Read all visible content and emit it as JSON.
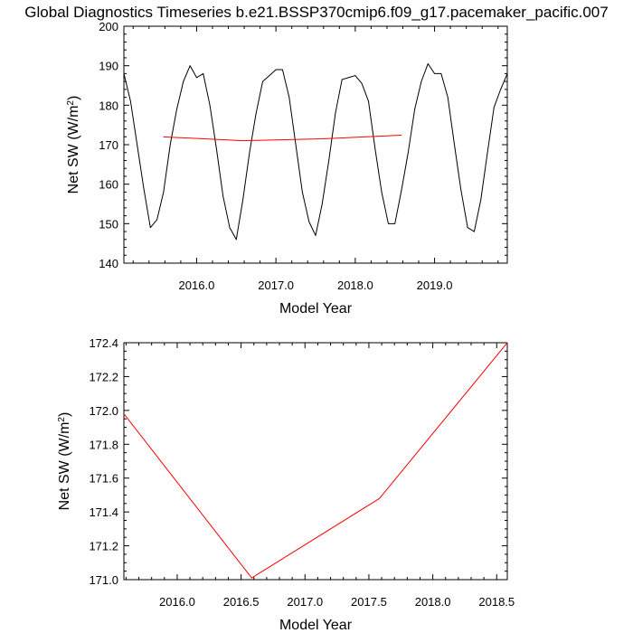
{
  "title": "Global Diagnostics Timeseries b.e21.BSSP370cmip6.f09_g17.pacemaker_pacific.007",
  "colors": {
    "monthly": "#000000",
    "annual": "#ff0000",
    "axes": "#000000"
  },
  "chart_data": [
    {
      "type": "line",
      "name": "monthly-and-annual-net-sw",
      "xlabel": "Model Year",
      "ylabel": "Net SW (W/m2)",
      "ylabel_main": "Net SW (W/m",
      "ylabel_sup": "2",
      "ylabel_close": ")",
      "xlim": [
        2015.083,
        2019.917
      ],
      "ylim": [
        140,
        200
      ],
      "xticks": [
        2016.0,
        2017.0,
        2018.0,
        2019.0
      ],
      "xtick_labels": [
        "2016.0",
        "2017.0",
        "2018.0",
        "2019.0"
      ],
      "yticks": [
        140,
        150,
        160,
        170,
        180,
        190,
        200
      ],
      "ytick_labels": [
        "140",
        "150",
        "160",
        "170",
        "180",
        "190",
        "200"
      ],
      "series": [
        {
          "name": "monthly",
          "color": "#000000",
          "x": [
            2015.083,
            2015.167,
            2015.25,
            2015.333,
            2015.417,
            2015.5,
            2015.583,
            2015.667,
            2015.75,
            2015.833,
            2015.917,
            2016.0,
            2016.083,
            2016.167,
            2016.25,
            2016.333,
            2016.417,
            2016.5,
            2016.583,
            2016.667,
            2016.75,
            2016.833,
            2016.917,
            2017.0,
            2017.083,
            2017.167,
            2017.25,
            2017.333,
            2017.417,
            2017.5,
            2017.583,
            2017.667,
            2017.75,
            2017.833,
            2017.917,
            2018.0,
            2018.083,
            2018.167,
            2018.25,
            2018.333,
            2018.417,
            2018.5,
            2018.583,
            2018.667,
            2018.75,
            2018.833,
            2018.917,
            2019.0,
            2019.083,
            2019.167,
            2019.25,
            2019.333,
            2019.417,
            2019.5,
            2019.583,
            2019.667,
            2019.75,
            2019.833,
            2019.917
          ],
          "values": [
            188.0,
            181.0,
            170.0,
            159.0,
            149.0,
            151.0,
            158.0,
            170.0,
            179.0,
            186.0,
            190.0,
            187.0,
            188.0,
            180.0,
            169.0,
            157.0,
            149.0,
            146.0,
            156.0,
            168.0,
            178.0,
            186.0,
            187.5,
            189.0,
            189.0,
            182.0,
            170.0,
            158.0,
            150.5,
            147.0,
            155.0,
            166.0,
            178.0,
            186.5,
            187.0,
            187.5,
            185.5,
            181.0,
            169.0,
            158.0,
            150.0,
            150.0,
            158.5,
            168.0,
            179.0,
            186.0,
            190.5,
            188.0,
            188.0,
            182.0,
            170.0,
            158.5,
            149.0,
            148.0,
            156.0,
            168.0,
            179.5,
            184.0,
            188.0
          ]
        },
        {
          "name": "annual",
          "color": "#ff0000",
          "x": [
            2015.583,
            2016.583,
            2017.583,
            2018.583
          ],
          "values": [
            171.98,
            171.01,
            171.48,
            172.4
          ]
        }
      ]
    },
    {
      "type": "line",
      "name": "annual-net-sw",
      "xlabel": "Model Year",
      "ylabel": "Net SW (W/m2)",
      "ylabel_main": "Net SW (W/m",
      "ylabel_sup": "2",
      "ylabel_close": ")",
      "xlim": [
        2015.583,
        2018.583
      ],
      "ylim": [
        171.0,
        172.4
      ],
      "xticks": [
        2016.0,
        2016.5,
        2017.0,
        2017.5,
        2018.0,
        2018.5
      ],
      "xtick_labels": [
        "2016.0",
        "2016.5",
        "2017.0",
        "2017.5",
        "2018.0",
        "2018.5"
      ],
      "yticks": [
        171.0,
        171.2,
        171.4,
        171.6,
        171.8,
        172.0,
        172.2,
        172.4
      ],
      "ytick_labels": [
        "171.0",
        "171.2",
        "171.4",
        "171.6",
        "171.8",
        "172.0",
        "172.2",
        "172.4"
      ],
      "series": [
        {
          "name": "annual",
          "color": "#ff0000",
          "x": [
            2015.583,
            2016.583,
            2017.583,
            2018.583
          ],
          "values": [
            171.98,
            171.01,
            171.48,
            172.4
          ]
        }
      ]
    }
  ]
}
